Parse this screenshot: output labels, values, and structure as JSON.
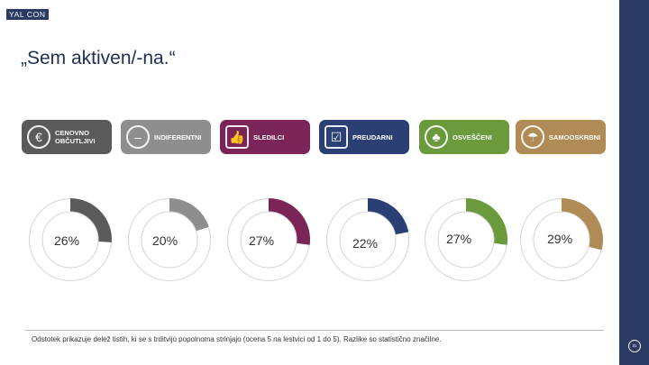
{
  "logo": {
    "text": "YAL CON"
  },
  "header": {
    "title": "„Sem aktiven/-na.“"
  },
  "segments": [
    {
      "label": "CENOVNO\nOBČUTLJIVI",
      "color": "#5a5a5a",
      "icon": "euro-icon"
    },
    {
      "label": "INDIFERENTNI",
      "color": "#8e8e8e",
      "icon": "neutral-face-icon"
    },
    {
      "label": "SLEDILCI",
      "color": "#7b2457",
      "icon": "thumbs-up-icon"
    },
    {
      "label": "PREUDARNI",
      "color": "#2b3f74",
      "icon": "checklist-icon"
    },
    {
      "label": "OSVEŠČENI",
      "color": "#6a9a3c",
      "icon": "plant-icon"
    },
    {
      "label": "SAMOOSKRBNI",
      "color": "#b08b55",
      "icon": "watering-can-icon"
    }
  ],
  "chart_data": {
    "type": "pie",
    "categories": [
      "CENOVNO OBČUTLJIVI",
      "INDIFERENTNI",
      "SLEDILCI",
      "PREUDARNI",
      "OSVEŠČENI",
      "SAMOOSKRBNI"
    ],
    "values": [
      26,
      20,
      27,
      22,
      27,
      29
    ],
    "value_labels": [
      "26%",
      "20%",
      "27%",
      "22%",
      "27%",
      "29%"
    ],
    "colors": [
      "#5a5a5a",
      "#8e8e8e",
      "#7b2457",
      "#2b3f74",
      "#6a9a3c",
      "#b08b55"
    ],
    "remainder_color": "#ffffff",
    "unit": "%"
  },
  "footnote": "Odstotek prikazuje delež tistih, ki se s trditvijo popolnoma strinjajo (ocena 5 na lestvici od 1 do 5). Razlike so statistično značilne.",
  "page": {
    "number": "31"
  }
}
